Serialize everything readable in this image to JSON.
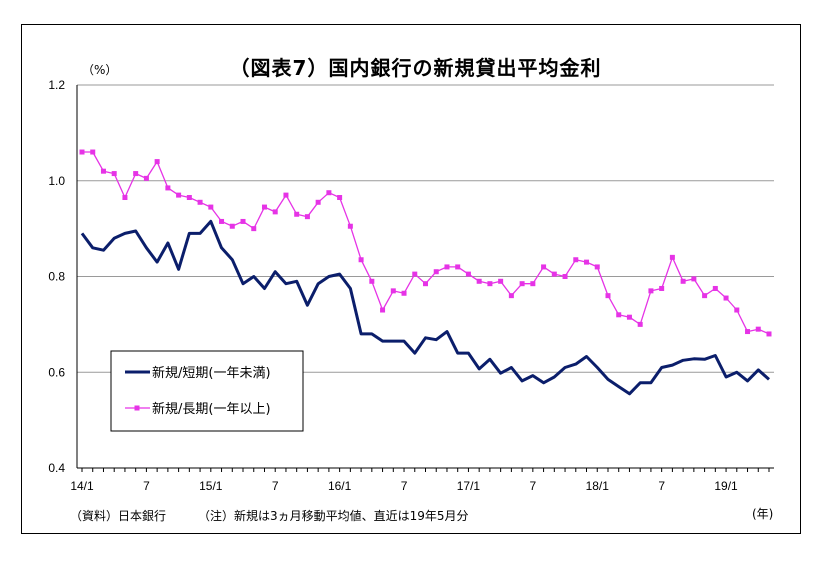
{
  "title": "（図表7）国内銀行の新規貸出平均金利",
  "y_unit": "（%）",
  "x_unit": "(年)",
  "source": "（資料）日本銀行",
  "note": "（注）新規は3ヵ月移動平均値、直近は19年5月分",
  "colors": {
    "short": "#0b1e6b",
    "long": "#e633e6",
    "grid": "#9a9a9a"
  },
  "chart_data": {
    "type": "line",
    "title": "（図表7）国内銀行の新規貸出平均金利",
    "ylabel": "（%）",
    "xlabel": "(年)",
    "ylim": [
      0.4,
      1.2
    ],
    "yticks": [
      "0.4",
      "0.6",
      "0.8",
      "1.0",
      "1.2"
    ],
    "xticks": [
      {
        "index": 0,
        "label": "14/1"
      },
      {
        "index": 6,
        "label": "7"
      },
      {
        "index": 12,
        "label": "15/1"
      },
      {
        "index": 18,
        "label": "7"
      },
      {
        "index": 24,
        "label": "16/1"
      },
      {
        "index": 30,
        "label": "7"
      },
      {
        "index": 36,
        "label": "17/1"
      },
      {
        "index": 42,
        "label": "7"
      },
      {
        "index": 48,
        "label": "18/1"
      },
      {
        "index": 54,
        "label": "7"
      },
      {
        "index": 60,
        "label": "19/1"
      }
    ],
    "grid": true,
    "legend_position": "bottom-left",
    "series": [
      {
        "name": "新規/短期(一年未満)",
        "values": [
          0.89,
          0.86,
          0.855,
          0.88,
          0.89,
          0.895,
          0.86,
          0.83,
          0.87,
          0.815,
          0.89,
          0.89,
          0.915,
          0.86,
          0.835,
          0.785,
          0.8,
          0.775,
          0.81,
          0.785,
          0.79,
          0.74,
          0.785,
          0.8,
          0.805,
          0.775,
          0.68,
          0.68,
          0.665,
          0.665,
          0.665,
          0.64,
          0.672,
          0.668,
          0.685,
          0.64,
          0.64,
          0.607,
          0.627,
          0.598,
          0.61,
          0.582,
          0.593,
          0.578,
          0.59,
          0.61,
          0.617,
          0.633,
          0.61,
          0.585,
          0.57,
          0.555,
          0.578,
          0.578,
          0.61,
          0.615,
          0.625,
          0.628,
          0.627,
          0.635,
          0.59,
          0.6,
          0.582,
          0.605,
          0.585
        ]
      },
      {
        "name": "新規/長期(一年以上)",
        "values": [
          1.06,
          1.06,
          1.02,
          1.015,
          0.965,
          1.015,
          1.005,
          1.04,
          0.985,
          0.97,
          0.965,
          0.955,
          0.945,
          0.915,
          0.905,
          0.915,
          0.9,
          0.945,
          0.935,
          0.97,
          0.93,
          0.925,
          0.955,
          0.975,
          0.965,
          0.905,
          0.835,
          0.79,
          0.73,
          0.77,
          0.765,
          0.805,
          0.785,
          0.81,
          0.82,
          0.82,
          0.805,
          0.79,
          0.785,
          0.79,
          0.76,
          0.785,
          0.785,
          0.82,
          0.805,
          0.8,
          0.835,
          0.83,
          0.82,
          0.76,
          0.72,
          0.715,
          0.7,
          0.77,
          0.775,
          0.84,
          0.79,
          0.795,
          0.76,
          0.775,
          0.755,
          0.73,
          0.685,
          0.69,
          0.68
        ]
      }
    ]
  }
}
